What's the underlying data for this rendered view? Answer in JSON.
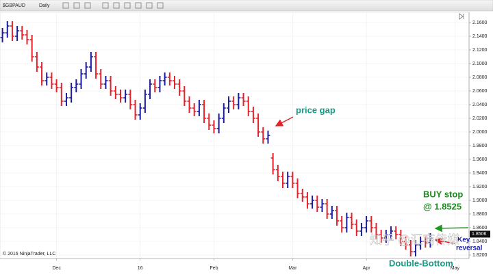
{
  "toolbar": {
    "symbol": "$GBPAUD",
    "interval": "Daily"
  },
  "chart_data": {
    "type": "ohlc",
    "copyright": "© 2016 NinjaTrader, LLC",
    "categories": [
      null,
      null,
      null,
      null,
      null,
      null,
      null,
      null,
      null,
      null,
      null,
      "Dec",
      null,
      null,
      null,
      null,
      null,
      null,
      null,
      null,
      null,
      null,
      null,
      null,
      null,
      null,
      null,
      null,
      "16",
      null,
      null,
      null,
      null,
      null,
      null,
      null,
      null,
      null,
      null,
      null,
      null,
      null,
      null,
      "Feb",
      null,
      null,
      null,
      null,
      null,
      null,
      null,
      null,
      null,
      null,
      null,
      null,
      null,
      null,
      null,
      "Mar",
      null,
      null,
      null,
      null,
      null,
      null,
      null,
      null,
      null,
      null,
      null,
      null,
      null,
      null,
      "Apr",
      null,
      null,
      null,
      null,
      null,
      null,
      null,
      null,
      null,
      null,
      null,
      null,
      null,
      null,
      null,
      null,
      null,
      "May"
    ],
    "open": [
      2.138,
      2.145,
      2.155,
      2.14,
      2.148,
      2.142,
      2.135,
      2.11,
      2.095,
      2.075,
      2.08,
      2.07,
      2.065,
      2.045,
      2.05,
      2.065,
      2.07,
      2.085,
      2.095,
      2.11,
      2.085,
      2.07,
      2.075,
      2.06,
      2.055,
      2.05,
      2.055,
      2.04,
      2.025,
      2.035,
      2.055,
      2.07,
      2.065,
      2.075,
      2.08,
      2.075,
      2.07,
      2.06,
      2.045,
      2.035,
      2.03,
      2.04,
      2.02,
      2.01,
      2.005,
      2.02,
      2.035,
      2.045,
      2.04,
      2.05,
      2.045,
      2.03,
      2.02,
      2.0,
      1.99,
      1.962,
      1.945,
      1.935,
      1.925,
      1.935,
      1.925,
      1.91,
      1.905,
      1.895,
      1.9,
      1.89,
      1.895,
      1.88,
      1.885,
      1.87,
      1.86,
      1.875,
      1.865,
      1.855,
      1.86,
      1.87,
      1.86,
      1.85,
      1.845,
      1.85,
      1.855,
      1.85,
      1.84,
      1.835,
      1.825,
      1.835,
      1.84,
      1.838,
      null,
      null,
      null,
      null,
      null
    ],
    "high": [
      2.152,
      2.162,
      2.162,
      2.155,
      2.155,
      2.149,
      2.142,
      2.117,
      2.102,
      2.087,
      2.087,
      2.077,
      2.072,
      2.057,
      2.072,
      2.077,
      2.092,
      2.102,
      2.117,
      2.117,
      2.092,
      2.082,
      2.082,
      2.067,
      2.062,
      2.062,
      2.062,
      2.047,
      2.042,
      2.062,
      2.077,
      2.077,
      2.082,
      2.087,
      2.087,
      2.082,
      2.077,
      2.067,
      2.052,
      2.042,
      2.047,
      2.047,
      2.027,
      2.017,
      2.027,
      2.042,
      2.052,
      2.052,
      2.057,
      2.057,
      2.052,
      2.037,
      2.027,
      2.007,
      2.002,
      1.969,
      1.952,
      1.942,
      1.942,
      1.942,
      1.932,
      1.917,
      1.912,
      1.907,
      1.907,
      1.902,
      1.902,
      1.892,
      1.892,
      1.877,
      1.882,
      1.882,
      1.872,
      1.867,
      1.877,
      1.877,
      1.867,
      1.857,
      1.857,
      1.862,
      1.862,
      1.857,
      1.847,
      1.842,
      1.842,
      1.847,
      1.847,
      1.852,
      null,
      null,
      null,
      null,
      null
    ],
    "low": [
      2.131,
      2.138,
      2.133,
      2.133,
      2.135,
      2.128,
      2.103,
      2.088,
      2.068,
      2.068,
      2.063,
      2.058,
      2.038,
      2.038,
      2.043,
      2.058,
      2.063,
      2.078,
      2.088,
      2.078,
      2.063,
      2.063,
      2.053,
      2.048,
      2.043,
      2.043,
      2.033,
      2.018,
      2.018,
      2.028,
      2.048,
      2.058,
      2.058,
      2.068,
      2.068,
      2.063,
      2.053,
      2.038,
      2.028,
      2.023,
      2.023,
      2.013,
      2.003,
      1.998,
      1.998,
      2.013,
      2.028,
      2.033,
      2.033,
      2.038,
      2.023,
      2.013,
      1.993,
      1.983,
      1.983,
      1.938,
      1.928,
      1.918,
      1.918,
      1.918,
      1.903,
      1.898,
      1.888,
      1.888,
      1.883,
      1.883,
      1.873,
      1.873,
      1.863,
      1.853,
      1.853,
      1.858,
      1.848,
      1.848,
      1.853,
      1.853,
      1.843,
      1.838,
      1.838,
      1.843,
      1.843,
      1.833,
      1.828,
      1.818,
      1.818,
      1.828,
      1.831,
      1.831,
      null,
      null,
      null,
      null,
      null
    ],
    "close": [
      2.145,
      2.155,
      2.14,
      2.148,
      2.142,
      2.135,
      2.11,
      2.095,
      2.075,
      2.08,
      2.07,
      2.065,
      2.045,
      2.05,
      2.065,
      2.07,
      2.085,
      2.095,
      2.11,
      2.085,
      2.07,
      2.075,
      2.06,
      2.055,
      2.05,
      2.055,
      2.04,
      2.025,
      2.035,
      2.055,
      2.07,
      2.065,
      2.075,
      2.08,
      2.075,
      2.07,
      2.06,
      2.045,
      2.035,
      2.03,
      2.04,
      2.02,
      2.01,
      2.005,
      2.02,
      2.035,
      2.045,
      2.04,
      2.05,
      2.045,
      2.03,
      2.02,
      2.0,
      1.99,
      1.995,
      1.945,
      1.935,
      1.925,
      1.935,
      1.925,
      1.91,
      1.905,
      1.895,
      1.9,
      1.89,
      1.895,
      1.88,
      1.885,
      1.87,
      1.86,
      1.875,
      1.865,
      1.855,
      1.86,
      1.87,
      1.86,
      1.85,
      1.845,
      1.85,
      1.855,
      1.85,
      1.84,
      1.835,
      1.825,
      1.835,
      1.84,
      1.838,
      1.845,
      null,
      null,
      null,
      null,
      null
    ],
    "up_color": "#1c1c9e",
    "down_color": "#e3222b",
    "last_price": 1.8506,
    "ylim": [
      1.815,
      2.175
    ],
    "yticks": [
      {
        "value": 1.82,
        "label": "1.8200"
      },
      {
        "value": 1.84,
        "label": "1.8400"
      },
      {
        "value": 1.86,
        "label": "1.8600"
      },
      {
        "value": 1.88,
        "label": "1.8800"
      },
      {
        "value": 1.9,
        "label": "1.9000"
      },
      {
        "value": 1.92,
        "label": "1.9200"
      },
      {
        "value": 1.94,
        "label": "1.9400"
      },
      {
        "value": 1.96,
        "label": "1.9600"
      },
      {
        "value": 1.98,
        "label": "1.9800"
      },
      {
        "value": 2.0,
        "label": "2.0000"
      },
      {
        "value": 2.02,
        "label": "2.0200"
      },
      {
        "value": 2.04,
        "label": "2.0400"
      },
      {
        "value": 2.06,
        "label": "2.0600"
      },
      {
        "value": 2.08,
        "label": "2.0800"
      },
      {
        "value": 2.1,
        "label": "2.1000"
      },
      {
        "value": 2.12,
        "label": "2.1200"
      },
      {
        "value": 2.14,
        "label": "2.1400"
      },
      {
        "value": 2.16,
        "label": "2.1600"
      }
    ],
    "grid": true,
    "annotations": {
      "gap": "price gap",
      "buy_line1": "BUY stop",
      "buy_line2": "@ 1.8525",
      "key_line1": "Key",
      "key_line2": "reversal",
      "pattern": "Double-Bottom",
      "watermark": "知乎 @汇商传媒"
    }
  }
}
